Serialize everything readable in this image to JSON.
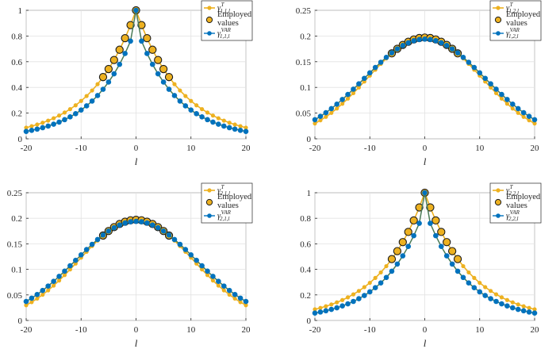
{
  "chart_data": [
    {
      "type": "line",
      "xlabel": "l",
      "xlim": [
        -20,
        20
      ],
      "ylim": [
        0,
        1
      ],
      "xticks": [
        -20,
        -10,
        0,
        10,
        20
      ],
      "xtick_labels": [
        "-20",
        "-10",
        "0",
        "10",
        "20"
      ],
      "yticks": [
        0,
        0.2,
        0.4,
        0.6,
        0.8,
        1
      ],
      "ytick_labels": [
        "0",
        "0.2",
        "0.4",
        "0.6",
        "0.8",
        "1"
      ],
      "grid": true,
      "legend_position": "top-right",
      "legend": {
        "theoretical": "γ",
        "theoretical_sup": "T",
        "theoretical_sub": "1,1,l",
        "employed_line1": "Employed",
        "employed_line2": "values",
        "var": "γ",
        "var_sup": "VAR",
        "var_sub": "1,1,l"
      },
      "colors": {
        "theoretical": "#EDB120",
        "employed": "#EDB120",
        "var": "#0072BD",
        "var_line": "#4a7a55"
      },
      "shape": "peak",
      "params": {
        "peak": 1.0,
        "decay": 0.885
      },
      "employed_range": [
        -6,
        6
      ],
      "series": [
        {
          "name": "γ^T_{1,1,l}",
          "x_range": [
            -20,
            20
          ],
          "values": "1.0 * 0.885^|l|, peak 1.0 at l=0, 0.088 at l=±20"
        },
        {
          "name": "Employed values",
          "x_range": [
            -6,
            6
          ],
          "values": [
            0.48,
            0.54,
            0.61,
            0.69,
            0.78,
            0.89,
            1.0,
            0.89,
            0.78,
            0.69,
            0.61,
            0.54,
            0.48
          ]
        },
        {
          "name": "γ^{VAR}_{1,1,l}",
          "x_range": [
            -20,
            20
          ],
          "values": "1.0 at l=0, 0.76 at l=±1, 0.05 at l=±20"
        }
      ]
    },
    {
      "type": "line",
      "xlabel": "l",
      "xlim": [
        -20,
        20
      ],
      "ylim": [
        0,
        0.25
      ],
      "xticks": [
        -20,
        -10,
        0,
        10,
        20
      ],
      "xtick_labels": [
        "-20",
        "-10",
        "0",
        "10",
        "20"
      ],
      "yticks": [
        0,
        0.05,
        0.1,
        0.15,
        0.2,
        0.25
      ],
      "ytick_labels": [
        "0",
        "0.05",
        "0.1",
        "0.15",
        "0.2",
        "0.25"
      ],
      "grid": true,
      "legend_position": "top-right",
      "legend": {
        "theoretical": "γ",
        "theoretical_sup": "T",
        "theoretical_sub": "1,2,l",
        "employed_line1": "Employed",
        "employed_line2": "values",
        "var": "γ",
        "var_sup": "VAR",
        "var_sub": "1,2,l"
      },
      "colors": {
        "theoretical": "#EDB120",
        "employed": "#EDB120",
        "var": "#0072BD",
        "var_line": "#4a7a55"
      },
      "shape": "bell",
      "params": {
        "peak": 0.197,
        "width": 10.3
      },
      "employed_range": [
        -6,
        6
      ],
      "series": [
        {
          "name": "γ^T_{1,2,l}",
          "x_range": [
            -20,
            20
          ],
          "values": "peak 0.197 at l=0, 0.043 at l=±20"
        },
        {
          "name": "Employed values",
          "x_range": [
            -6,
            6
          ],
          "values": "≈0.197 near l=0, ≈0.17 at l=±6"
        },
        {
          "name": "γ^{VAR}_{1,2,l}",
          "x_range": [
            -20,
            20
          ],
          "values": "peak 0.194 at l=0, 0.046 at l=±20"
        }
      ]
    },
    {
      "type": "line",
      "xlabel": "l",
      "xlim": [
        -20,
        20
      ],
      "ylim": [
        0,
        0.25
      ],
      "xticks": [
        -20,
        -10,
        0,
        10,
        20
      ],
      "xtick_labels": [
        "-20",
        "-10",
        "0",
        "10",
        "20"
      ],
      "yticks": [
        0,
        0.05,
        0.1,
        0.15,
        0.2,
        0.25
      ],
      "ytick_labels": [
        "0",
        "0.05",
        "0.1",
        "0.15",
        "0.2",
        "0.25"
      ],
      "grid": true,
      "legend_position": "top-right",
      "legend": {
        "theoretical": "γ",
        "theoretical_sup": "T",
        "theoretical_sub": "2,1,l",
        "employed_line1": "Employed",
        "employed_line2": "values",
        "var": "γ",
        "var_sup": "VAR",
        "var_sub": "2,1,l"
      },
      "colors": {
        "theoretical": "#EDB120",
        "employed": "#EDB120",
        "var": "#0072BD",
        "var_line": "#4a7a55"
      },
      "shape": "bell",
      "params": {
        "peak": 0.197,
        "width": 10.3
      },
      "employed_range": [
        -6,
        6
      ],
      "series": [
        {
          "name": "γ^T_{2,1,l}",
          "x_range": [
            -20,
            20
          ],
          "values": "peak 0.197 at l=0, 0.043 at l=±20"
        },
        {
          "name": "Employed values",
          "x_range": [
            -6,
            6
          ],
          "values": "≈0.197 near l=0, ≈0.17 at l=±6"
        },
        {
          "name": "γ^{VAR}_{2,1,l}",
          "x_range": [
            -20,
            20
          ],
          "values": "peak 0.194 at l=0, 0.046 at l=±20"
        }
      ]
    },
    {
      "type": "line",
      "xlabel": "l",
      "xlim": [
        -20,
        20
      ],
      "ylim": [
        0,
        1
      ],
      "xticks": [
        -20,
        -10,
        0,
        10,
        20
      ],
      "xtick_labels": [
        "-20",
        "-10",
        "0",
        "10",
        "20"
      ],
      "yticks": [
        0,
        0.2,
        0.4,
        0.6,
        0.8,
        1
      ],
      "ytick_labels": [
        "0",
        "0.2",
        "0.4",
        "0.6",
        "0.8",
        "1"
      ],
      "grid": true,
      "legend_position": "top-right",
      "legend": {
        "theoretical": "γ",
        "theoretical_sup": "T",
        "theoretical_sub": "2,2,l",
        "employed_line1": "Employed",
        "employed_line2": "values",
        "var": "γ",
        "var_sup": "VAR",
        "var_sub": "2,2,l"
      },
      "colors": {
        "theoretical": "#EDB120",
        "employed": "#EDB120",
        "var": "#0072BD",
        "var_line": "#4a7a55"
      },
      "shape": "peak",
      "params": {
        "peak": 1.0,
        "decay": 0.885
      },
      "employed_range": [
        -6,
        6
      ],
      "series": [
        {
          "name": "γ^T_{2,2,l}",
          "x_range": [
            -20,
            20
          ],
          "values": "1.0 * 0.885^|l|, peak 1.0 at l=0, 0.088 at l=±20"
        },
        {
          "name": "Employed values",
          "x_range": [
            -6,
            6
          ],
          "values": [
            0.48,
            0.54,
            0.61,
            0.69,
            0.78,
            0.89,
            1.0,
            0.89,
            0.78,
            0.69,
            0.61,
            0.54,
            0.48
          ]
        },
        {
          "name": "γ^{VAR}_{2,2,l}",
          "x_range": [
            -20,
            20
          ],
          "values": "1.0 at l=0, 0.76 at l=±1, 0.05 at l=±20"
        }
      ]
    }
  ]
}
